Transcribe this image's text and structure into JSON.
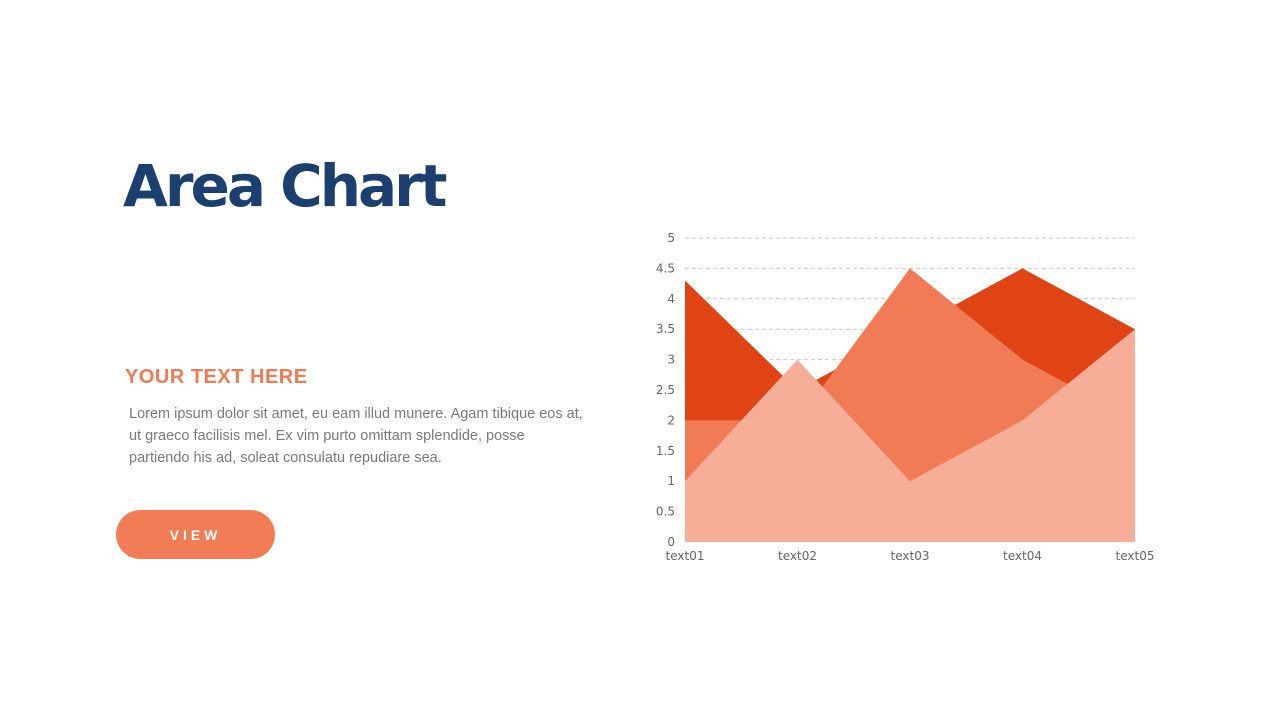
{
  "slide": {
    "title": "Area Chart",
    "subtitle": "YOUR TEXT HERE",
    "body": "Lorem ipsum dolor sit amet, eu eam illud munere. Agam tibique eos at, ut graeco facilisis mel. Ex vim purto omittam splendide, posse partiendo his ad, soleat consulatu repudiare sea.",
    "button_label": "VIEW"
  },
  "colors": {
    "title": "#1b3f6e",
    "accent": "#f27c56"
  },
  "chart_data": {
    "type": "area",
    "categories": [
      "text01",
      "text02",
      "text03",
      "text04",
      "text05"
    ],
    "series": [
      {
        "values": [
          4.3,
          2.5,
          3.5,
          4.5,
          3.5
        ],
        "color": "#e14414"
      },
      {
        "values": [
          2.0,
          2.0,
          4.5,
          3.0,
          2.0
        ],
        "color": "#f17b55"
      },
      {
        "values": [
          1.0,
          3.0,
          1.0,
          2.0,
          3.5
        ],
        "color": "#f7ae98"
      }
    ],
    "ylim": [
      0,
      5
    ],
    "yticks": [
      "0",
      "0.5",
      "1",
      "1.5",
      "2",
      "2.5",
      "3",
      "3.5",
      "4",
      "4.5",
      "5"
    ],
    "grid": "dashed horizontal",
    "legend": "none"
  }
}
